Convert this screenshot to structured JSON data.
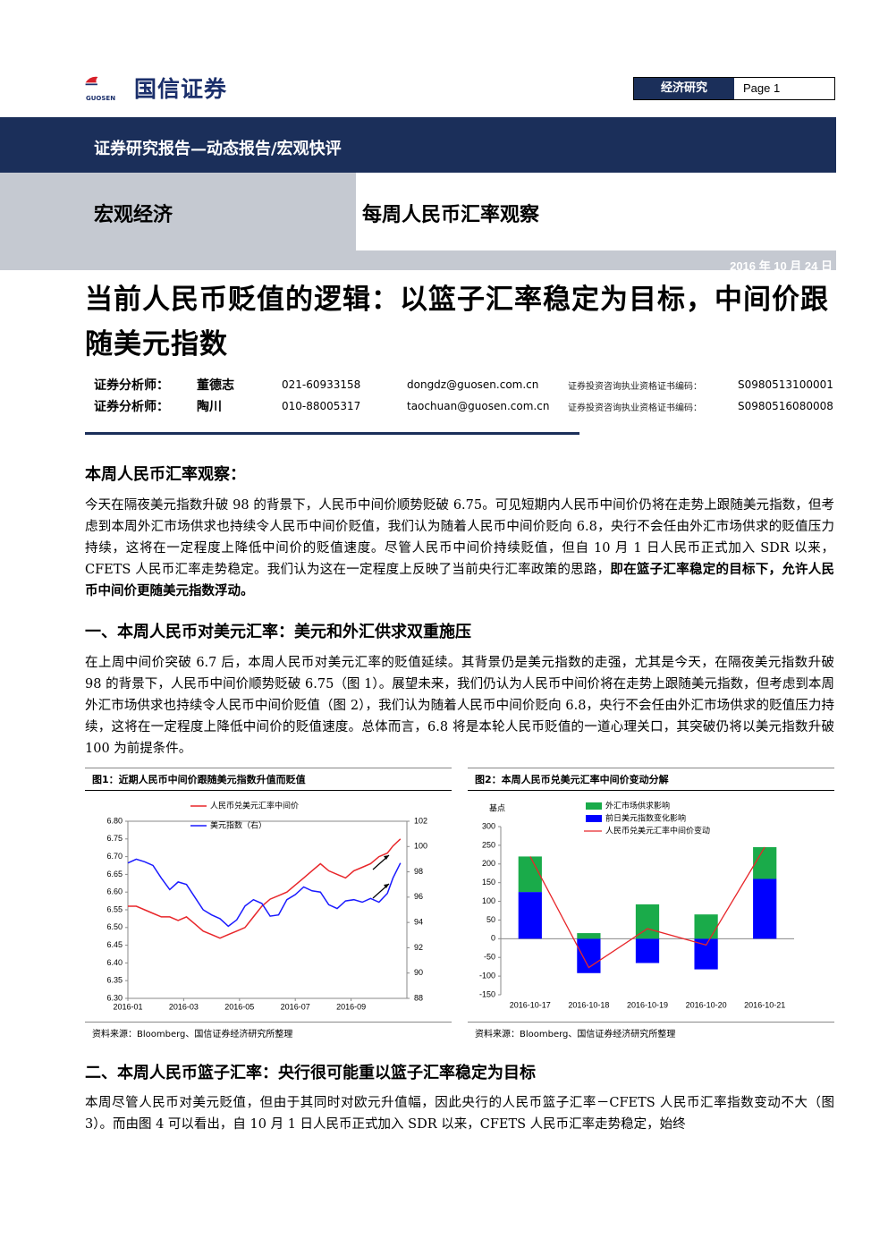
{
  "header": {
    "logo_text": "国信证券",
    "logo_sub": "GUOSEN",
    "report_category": "经济研究",
    "page": "Page 1",
    "report_type": "证券研究报告—动态报告/宏观快评",
    "sector": "宏观经济",
    "column": "每周人民币汇率观察",
    "date": "2016 年 10 月 24 日"
  },
  "title": "当前人民币贬值的逻辑：以篮子汇率稳定为目标，中间价跟随美元指数",
  "analysts": {
    "rows": [
      [
        "证券分析师：",
        "董德志",
        "021-60933158",
        "dongdz@guosen.com.cn",
        "证券投资咨询执业资格证书编码：",
        "S0980513100001"
      ],
      [
        "证券分析师：",
        "陶川",
        "010-88005317",
        "taochuan@guosen.com.cn",
        "证券投资咨询执业资格证书编码：",
        "S0980516080008"
      ]
    ]
  },
  "intro": {
    "heading": "本周人民币汇率观察：",
    "text": "今天在隔夜美元指数升破 98 的背景下，人民币中间价顺势贬破 6.75。可见短期内人民币中间价仍将在走势上跟随美元指数，但考虑到本周外汇市场供求也持续令人民币中间价贬值，我们认为随着人民币中间价贬向 6.8，央行不会任由外汇市场供求的贬值压力持续，这将在一定程度上降低中间价的贬值速度。尽管人民币中间价持续贬值，但自 10 月 1 日人民币正式加入 SDR 以来，CFETS 人民币汇率走势稳定。我们认为这在一定程度上反映了当前央行汇率政策的思路，",
    "bold": "即在篮子汇率稳定的目标下，允许人民币中间价更随美元指数浮动。"
  },
  "section1": {
    "heading": "一、本周人民币对美元汇率：美元和外汇供求双重施压",
    "text": "在上周中间价突破 6.7 后，本周人民币对美元汇率的贬值延续。其背景仍是美元指数的走强，尤其是今天，在隔夜美元指数升破 98 的背景下，人民币中间价顺势贬破 6.75（图 1）。展望未来，我们仍认为人民币中间价将在走势上跟随美元指数，但考虑到本周外汇市场供求也持续令人民币中间价贬值（图 2），我们认为随着人民币中间价贬向 6.8，央行不会任由外汇市场供求的贬值压力持续，这将在一定程度上降低中间价的贬值速度。总体而言，6.8 将是本轮人民币贬值的一道心理关口，其突破仍将以美元指数升破 100 为前提条件。"
  },
  "figures": [
    {
      "caption": "图1：近期人民币中间价跟随美元指数升值而贬值",
      "source": "资料来源：Bloomberg、国信证券经济研究所整理",
      "chart_data": {
        "type": "line",
        "x": [
          1.0,
          1.3,
          1.6,
          1.9,
          2.2,
          2.5,
          2.8,
          3.1,
          3.4,
          3.7,
          4.0,
          4.3,
          4.6,
          4.9,
          5.2,
          5.5,
          5.8,
          6.1,
          6.4,
          6.7,
          7.0,
          7.3,
          7.6,
          7.9,
          8.2,
          8.5,
          8.8,
          9.1,
          9.4,
          9.7,
          10.0,
          10.3,
          10.5,
          10.77
        ],
        "xlim": [
          1,
          11
        ],
        "xticks": [
          {
            "value": 1,
            "label": "2016-01"
          },
          {
            "value": 3,
            "label": "2016-03"
          },
          {
            "value": 5,
            "label": "2016-05"
          },
          {
            "value": 7,
            "label": "2016-07"
          },
          {
            "value": 9,
            "label": "2016-09"
          }
        ],
        "ylim": [
          6.3,
          6.8
        ],
        "yticks": [
          {
            "value": 6.3,
            "label": "6.30"
          },
          6.35,
          {
            "value": 6.4,
            "label": "6.40"
          },
          6.45,
          {
            "value": 6.5,
            "label": "6.50"
          },
          6.55,
          {
            "value": 6.6,
            "label": "6.60"
          },
          6.65,
          {
            "value": 6.7,
            "label": "6.70"
          },
          6.75,
          {
            "value": 6.8,
            "label": "6.80"
          }
        ],
        "y2lim": [
          88,
          102
        ],
        "y2ticks": [
          88,
          90,
          92,
          94,
          96,
          98,
          100,
          102
        ],
        "legend": "top",
        "series": [
          {
            "name": "人民币兑美元汇率中间价",
            "color": "#e8262a",
            "values": [
              6.56,
              6.56,
              6.55,
              6.54,
              6.53,
              6.53,
              6.52,
              6.53,
              6.51,
              6.49,
              6.48,
              6.47,
              6.48,
              6.49,
              6.5,
              6.53,
              6.56,
              6.58,
              6.59,
              6.6,
              6.62,
              6.64,
              6.66,
              6.68,
              6.66,
              6.65,
              6.64,
              6.66,
              6.67,
              6.68,
              6.7,
              6.71,
              6.73,
              6.75
            ]
          },
          {
            "name": "美元指数（右）",
            "color": "#1a1aff",
            "axis": "y2",
            "values": [
              98.7,
              99.0,
              98.8,
              98.5,
              97.5,
              96.6,
              97.2,
              97.0,
              96.0,
              95.0,
              94.6,
              94.3,
              93.7,
              94.2,
              95.3,
              95.8,
              95.5,
              94.5,
              94.6,
              95.8,
              96.2,
              96.8,
              96.5,
              96.4,
              95.4,
              95.1,
              95.7,
              95.8,
              95.6,
              95.9,
              95.6,
              96.3,
              97.5,
              98.7
            ]
          }
        ]
      }
    },
    {
      "caption": "图2：本周人民币兑美元汇率中间价变动分解",
      "source": "资料来源：Bloomberg、国信证券经济研究所整理",
      "chart_data": {
        "type": "bar",
        "stacked": true,
        "y_label": "基点",
        "categories": [
          "2016-10-17",
          "2016-10-18",
          "2016-10-19",
          "2016-10-20",
          "2016-10-21"
        ],
        "ylim": [
          -150,
          300
        ],
        "yticks": [
          -150,
          -100,
          -50,
          0,
          50,
          100,
          150,
          200,
          250,
          300
        ],
        "legend": "top",
        "series": [
          {
            "name": "外汇市场供求影响",
            "color": "#1aab4a",
            "values": [
              95,
              15,
              92,
              65,
              85
            ]
          },
          {
            "name": "前日美元指数变化影响",
            "color": "#0000ff",
            "values": [
              125,
              -92,
              -65,
              -82,
              160
            ]
          },
          {
            "name": "人民币兑美元汇率中间价变动",
            "color": "#e8262a",
            "type": "line",
            "values": [
              220,
              -77,
              27,
              -17,
              245
            ]
          }
        ]
      }
    }
  ],
  "section2": {
    "heading": "二、本周人民币篮子汇率：央行很可能重以篮子汇率稳定为目标",
    "text": "本周尽管人民币对美元贬值，但由于其同时对欧元升值幅，因此央行的人民币篮子汇率－CFETS 人民币汇率指数变动不大（图 3）。而由图 4 可以看出，自 10 月 1 日人民币正式加入 SDR 以来，CFETS 人民币汇率走势稳定，始终"
  }
}
